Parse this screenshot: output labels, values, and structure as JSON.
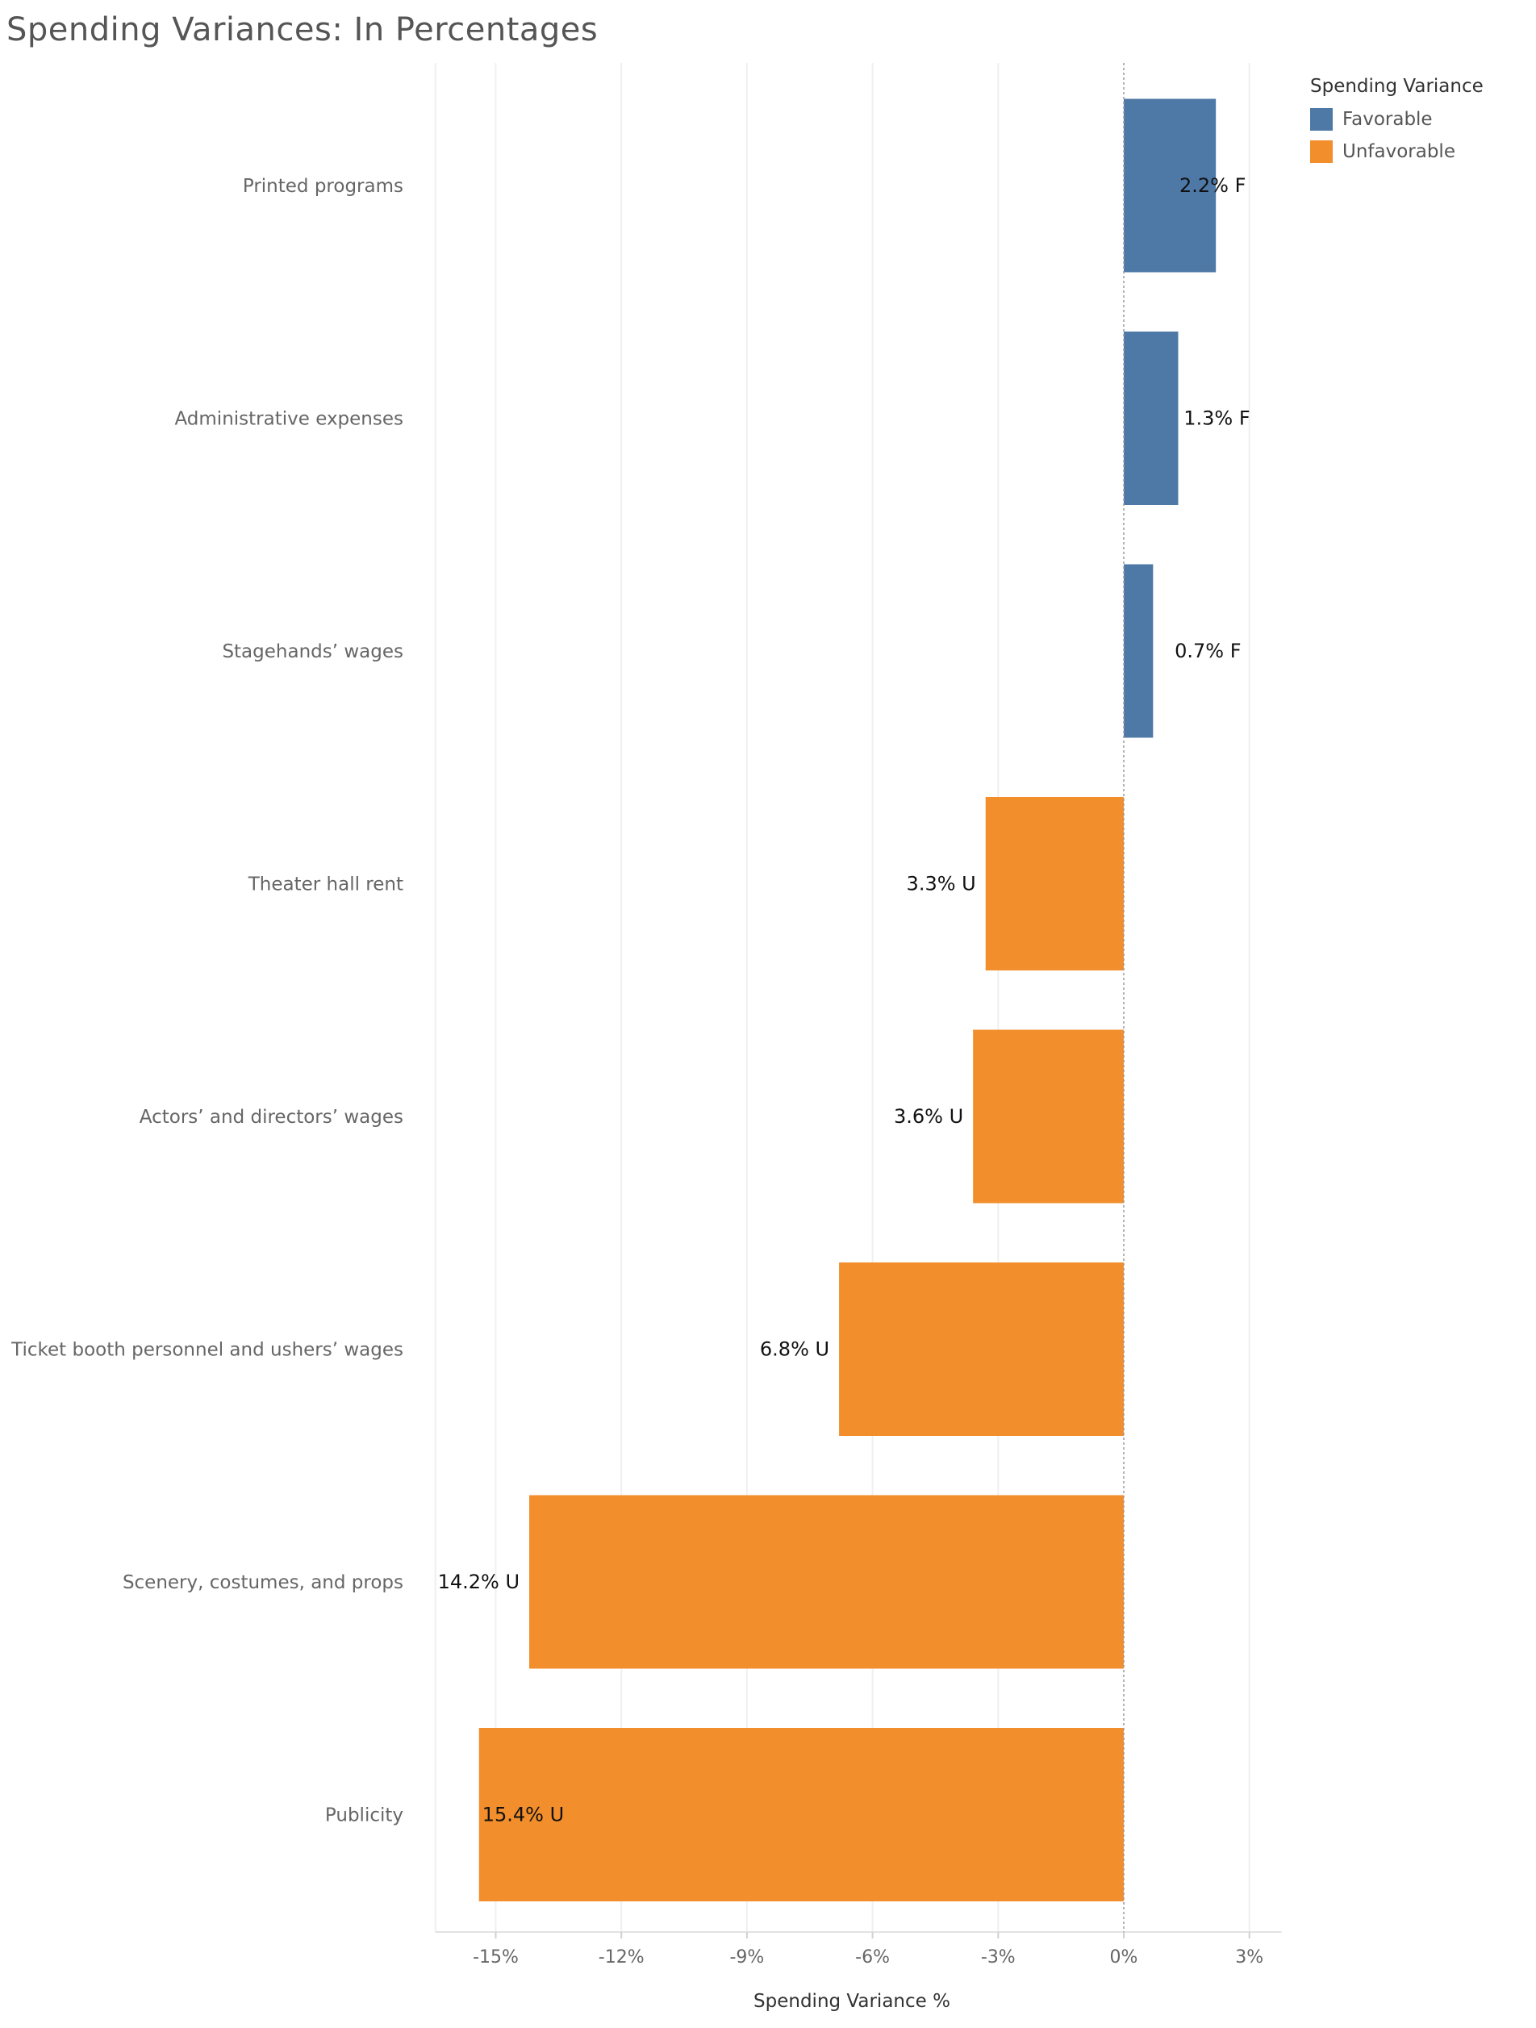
{
  "chart_data": {
    "type": "bar",
    "orientation": "horizontal",
    "title": "Spending Variances: In Percentages",
    "xlabel": "Spending Variance %",
    "ylabel": "",
    "xlim": [
      -17,
      4
    ],
    "x_ticks": [
      -15,
      -12,
      -9,
      -6,
      -3,
      0,
      3
    ],
    "x_tick_labels": [
      "-15%",
      "-12%",
      "-9%",
      "-6%",
      "-3%",
      "0%",
      "3%"
    ],
    "grid": "vertical",
    "legend_position": "top-right",
    "legend": {
      "title": "Spending Variance",
      "entries": [
        {
          "label": "Favorable",
          "color": "#4e79a7"
        },
        {
          "label": "Unfavorable",
          "color": "#f28e2b"
        }
      ]
    },
    "categories": [
      "Printed programs",
      "Administrative expenses",
      "Stagehands’ wages",
      "Theater hall rent",
      "Actors’ and directors’ wages",
      "Ticket booth personnel and ushers’ wages",
      "Scenery, costumes, and props",
      "Publicity"
    ],
    "values": [
      2.2,
      1.3,
      0.7,
      -3.3,
      -3.6,
      -6.8,
      -14.2,
      -15.4
    ],
    "groups": [
      "Favorable",
      "Favorable",
      "Favorable",
      "Unfavorable",
      "Unfavorable",
      "Unfavorable",
      "Unfavorable",
      "Unfavorable"
    ],
    "data_labels": [
      "2.2% F",
      "1.3% F",
      "0.7% F",
      "3.3% U",
      "3.6% U",
      "6.8% U",
      "14.2% U",
      "15.4% U"
    ]
  }
}
